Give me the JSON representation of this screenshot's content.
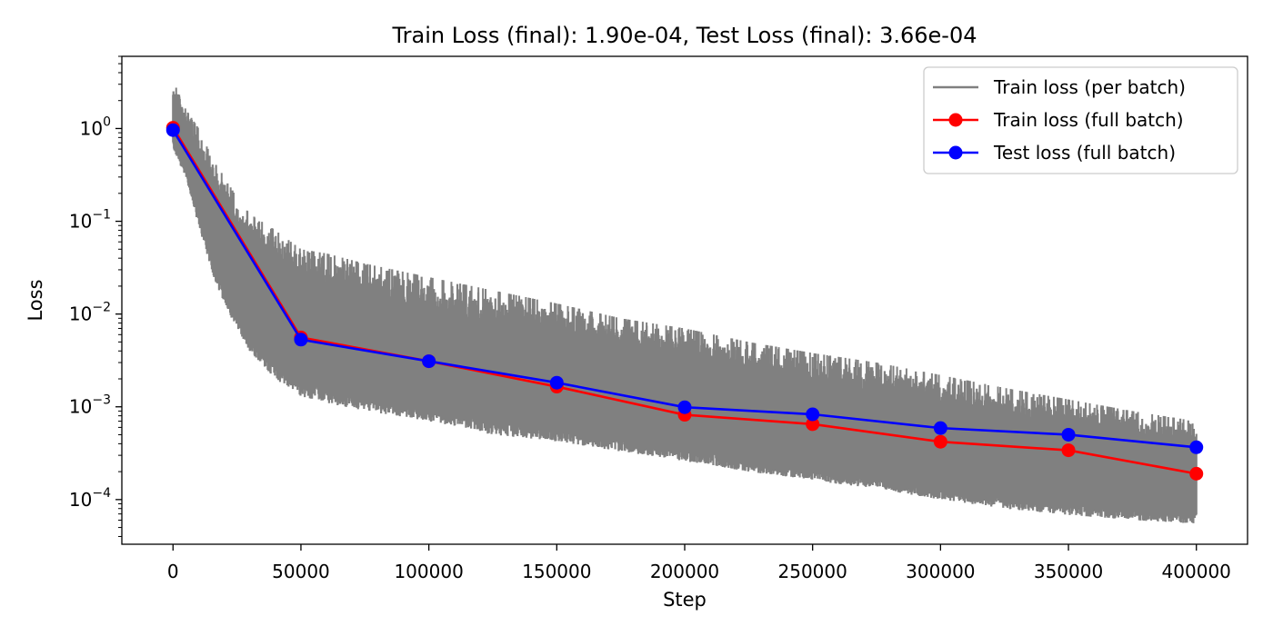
{
  "chart_data": {
    "type": "line",
    "title": "Train Loss (final): 1.90e-04, Test Loss (final): 3.66e-04",
    "xlabel": "Step",
    "ylabel": "Loss",
    "xlim": [
      -20000,
      420000
    ],
    "ylim": [
      3.3e-05,
      6.0
    ],
    "yscale": "log",
    "grid": false,
    "legend_position": "top-right",
    "x_ticks": [
      0,
      50000,
      100000,
      150000,
      200000,
      250000,
      300000,
      350000,
      400000
    ],
    "x_tick_labels": [
      "0",
      "50000",
      "100000",
      "150000",
      "200000",
      "250000",
      "300000",
      "350000",
      "400000"
    ],
    "y_ticks": [
      0.0001,
      0.001,
      0.01,
      0.1,
      1
    ],
    "y_tick_labels": [
      {
        "base": "10",
        "exp": "−4"
      },
      {
        "base": "10",
        "exp": "−3"
      },
      {
        "base": "10",
        "exp": "−2"
      },
      {
        "base": "10",
        "exp": "−1"
      },
      {
        "base": "10",
        "exp": "0"
      }
    ],
    "series": [
      {
        "name": "Train loss (per batch)",
        "color": "#808080",
        "style": "band",
        "x": [
          0,
          5000,
          10000,
          15000,
          20000,
          25000,
          30000,
          40000,
          50000,
          60000,
          75000,
          100000,
          125000,
          150000,
          175000,
          200000,
          225000,
          250000,
          275000,
          300000,
          325000,
          350000,
          375000,
          400000
        ],
        "upper": [
          3.3,
          1.6,
          1.0,
          0.5,
          0.3,
          0.18,
          0.12,
          0.08,
          0.05,
          0.045,
          0.035,
          0.025,
          0.018,
          0.013,
          0.009,
          0.007,
          0.005,
          0.0038,
          0.003,
          0.0022,
          0.0016,
          0.0012,
          0.0009,
          0.0007
        ],
        "lower": [
          0.6,
          0.3,
          0.09,
          0.03,
          0.012,
          0.007,
          0.004,
          0.002,
          0.0013,
          0.0011,
          0.0009,
          0.0007,
          0.0005,
          0.00042,
          0.00033,
          0.00026,
          0.0002,
          0.00016,
          0.00013,
          0.0001,
          8e-05,
          6.8e-05,
          6e-05,
          5.5e-05
        ]
      },
      {
        "name": "Train loss (full batch)",
        "color": "#ff0000",
        "style": "line-marker",
        "x": [
          0,
          50000,
          100000,
          150000,
          200000,
          250000,
          300000,
          350000,
          400000
        ],
        "values": [
          1.02,
          0.0056,
          0.0031,
          0.00165,
          0.00082,
          0.00065,
          0.00042,
          0.00034,
          0.00019
        ]
      },
      {
        "name": "Test loss (full batch)",
        "color": "#0000ff",
        "style": "line-marker",
        "x": [
          0,
          50000,
          100000,
          150000,
          200000,
          250000,
          300000,
          350000,
          400000
        ],
        "values": [
          0.96,
          0.0053,
          0.0031,
          0.00182,
          0.00099,
          0.00083,
          0.00059,
          0.0005,
          0.000366
        ]
      }
    ]
  }
}
